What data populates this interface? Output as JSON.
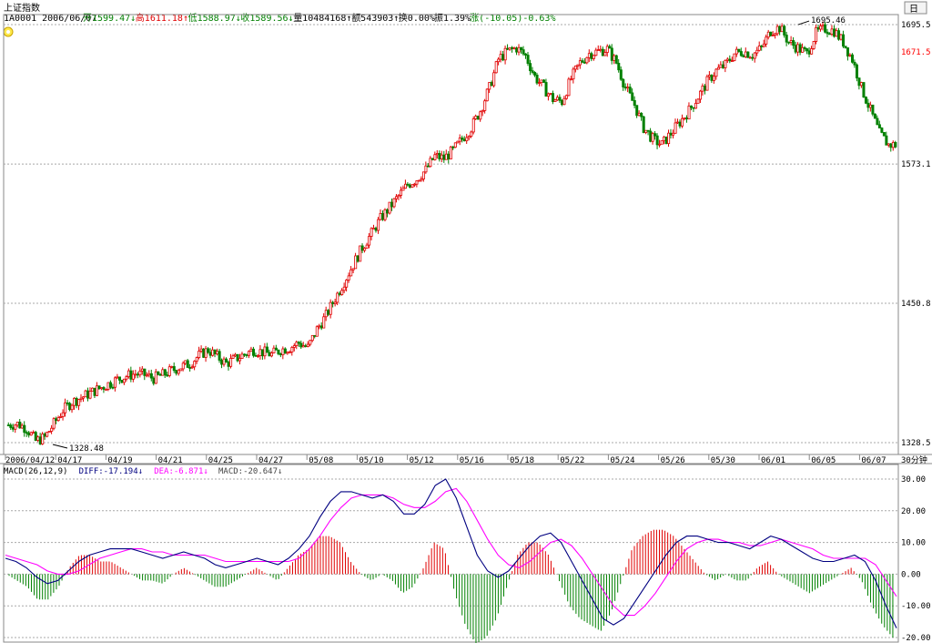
{
  "header": {
    "title": "上证指数",
    "code": "1A0001",
    "date": "2006/06/07",
    "open_label": "开",
    "open": "1599.47",
    "high_label": "高",
    "high": "1611.18",
    "low_label": "低",
    "low": "1588.97",
    "close_label": "收",
    "close": "1589.56",
    "volume_label": "量",
    "volume": "10484168",
    "amount_label": "额",
    "amount": "543903",
    "turnover_label": "换",
    "turnover": "0.00%",
    "amplitude_label": "振",
    "amplitude": "1.39%",
    "change_label": "涨",
    "change": "(-10.05)-0.63%"
  },
  "toolbar": {
    "day_button": "日",
    "period_label": "30分钟"
  },
  "colors": {
    "up": "#e00000",
    "down": "#008000",
    "diff": "#000080",
    "dea": "#ff00ff",
    "price_marker": "#ff0000"
  },
  "chart_data": [
    {
      "type": "candlestick",
      "title": "上证指数",
      "y_ticks": [
        "1695.5",
        "1573.1",
        "1450.8",
        "1328.5"
      ],
      "ylim": [
        1328.5,
        1695.5
      ],
      "current_price": "1671.5",
      "x_ticks": [
        "2006/04/12",
        "04/17",
        "04/19",
        "04/21",
        "04/25",
        "04/27",
        "05/08",
        "05/10",
        "05/12",
        "05/16",
        "05/18",
        "05/22",
        "05/24",
        "05/26",
        "05/30",
        "06/01",
        "06/05",
        "06/07"
      ],
      "annotations": [
        {
          "text": "1695.46",
          "value": 1695.46,
          "note": "high"
        },
        {
          "text": "1328.48",
          "value": 1328.48,
          "note": "low"
        }
      ],
      "series_close_approx": [
        1344,
        1345,
        1341,
        1330,
        1333,
        1345,
        1357,
        1364,
        1368,
        1372,
        1376,
        1380,
        1384,
        1387,
        1389,
        1388,
        1385,
        1388,
        1392,
        1395,
        1398,
        1405,
        1410,
        1404,
        1398,
        1402,
        1406,
        1410,
        1408,
        1406,
        1410,
        1412,
        1416,
        1412,
        1428,
        1440,
        1455,
        1470,
        1485,
        1500,
        1512,
        1525,
        1535,
        1545,
        1555,
        1560,
        1568,
        1580,
        1578,
        1585,
        1595,
        1605,
        1620,
        1640,
        1665,
        1672,
        1675,
        1668,
        1650,
        1640,
        1630,
        1628,
        1648,
        1662,
        1670,
        1672,
        1674,
        1662,
        1640,
        1625,
        1605,
        1595,
        1590,
        1600,
        1610,
        1620,
        1632,
        1645,
        1655,
        1660,
        1670,
        1672,
        1669,
        1675,
        1690,
        1693,
        1680,
        1675,
        1670,
        1688,
        1692,
        1690,
        1680,
        1665,
        1640,
        1620,
        1600,
        1590
      ],
      "grid": true
    },
    {
      "type": "line",
      "title": "MACD",
      "params": "MACD(26,12,9)",
      "legend": [
        {
          "label": "DIFF:",
          "value": "-17.194",
          "arrow": "↓"
        },
        {
          "label": "DEA:",
          "value": "-6.871",
          "arrow": "↓"
        },
        {
          "label": "MACD:",
          "value": "-20.647",
          "arrow": "↓"
        }
      ],
      "y_ticks": [
        "30.00",
        "20.00",
        "10.00",
        "0.00",
        "-10.00",
        "-20.00"
      ],
      "ylim": [
        -20,
        30
      ],
      "series": [
        {
          "name": "DIFF",
          "values": [
            5,
            4,
            2,
            -1,
            -3,
            -2,
            1,
            4,
            6,
            7,
            8,
            8,
            8,
            7,
            6,
            5,
            6,
            7,
            6,
            5,
            3,
            2,
            3,
            4,
            5,
            4,
            3,
            5,
            8,
            12,
            18,
            23,
            26,
            26,
            25,
            24,
            25,
            23,
            19,
            19,
            22,
            28,
            30,
            24,
            15,
            6,
            1,
            -1,
            1,
            5,
            9,
            12,
            13,
            10,
            4,
            -2,
            -8,
            -14,
            -16,
            -14,
            -9,
            -4,
            1,
            6,
            10,
            12,
            12,
            11,
            10,
            10,
            9,
            8,
            10,
            12,
            11,
            9,
            7,
            5,
            4,
            4,
            5,
            6,
            4,
            -2,
            -10,
            -17
          ]
        },
        {
          "name": "DEA",
          "values": [
            6,
            5,
            4,
            3,
            1,
            0,
            0,
            1,
            3,
            5,
            6,
            7,
            8,
            8,
            7,
            7,
            6,
            6,
            6,
            6,
            5,
            4,
            4,
            4,
            4,
            4,
            4,
            4,
            5,
            8,
            12,
            17,
            21,
            24,
            25,
            25,
            25,
            24,
            22,
            21,
            21,
            23,
            26,
            27,
            23,
            17,
            11,
            6,
            3,
            2,
            4,
            7,
            10,
            11,
            9,
            5,
            0,
            -5,
            -10,
            -13,
            -13,
            -10,
            -6,
            -1,
            4,
            8,
            10,
            11,
            11,
            10,
            10,
            9,
            9,
            10,
            11,
            10,
            9,
            8,
            6,
            5,
            5,
            5,
            5,
            3,
            -2,
            -7
          ]
        },
        {
          "name": "MACD",
          "values": [
            0,
            -2,
            -4,
            -8,
            -8,
            -4,
            2,
            6,
            6,
            4,
            4,
            2,
            0,
            -2,
            -2,
            -3,
            0,
            2,
            0,
            -2,
            -4,
            -4,
            -2,
            0,
            2,
            0,
            -2,
            2,
            6,
            8,
            12,
            12,
            10,
            4,
            0,
            -2,
            0,
            -2,
            -6,
            -4,
            2,
            10,
            8,
            -6,
            -16,
            -22,
            -20,
            -14,
            -4,
            6,
            10,
            10,
            6,
            -2,
            -10,
            -14,
            -16,
            -18,
            -12,
            -2,
            8,
            12,
            14,
            14,
            12,
            8,
            4,
            0,
            -2,
            0,
            -2,
            -2,
            2,
            4,
            0,
            -2,
            -4,
            -6,
            -4,
            -2,
            0,
            2,
            -2,
            -10,
            -16,
            -20
          ]
        }
      ],
      "grid": true
    }
  ]
}
